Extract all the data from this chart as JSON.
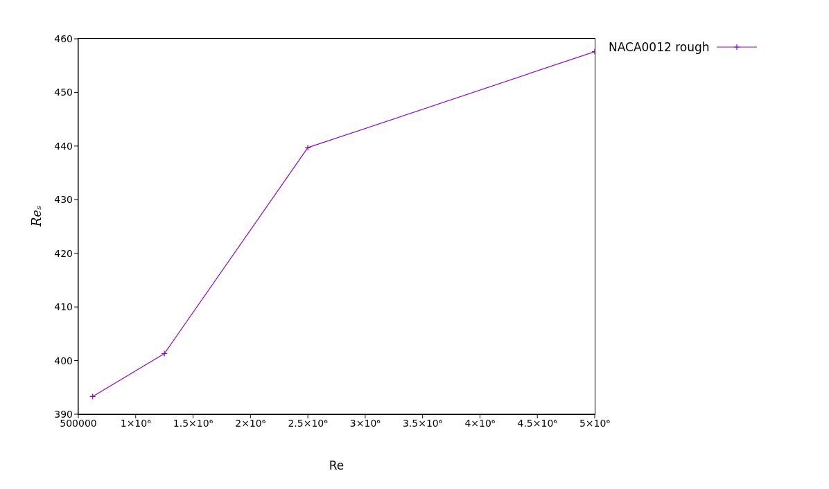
{
  "chart_data": {
    "type": "line",
    "xlabel": "Re",
    "ylabel": "Reₛ",
    "x": [
      625000,
      1250000,
      2500000,
      5000000
    ],
    "series": [
      {
        "name": "NACA0012 rough",
        "color": "#9400d3",
        "values": [
          393.3,
          401.3,
          439.7,
          457.6
        ]
      }
    ],
    "xlim": [
      500000,
      5000000
    ],
    "xticks": [
      500000,
      {
        "value": 1000000,
        "label": "1×10⁶"
      },
      {
        "value": 1500000,
        "label": "1.5×10⁶"
      },
      {
        "value": 2000000,
        "label": "2×10⁶"
      },
      {
        "value": 2500000,
        "label": "2.5×10⁶"
      },
      {
        "value": 3000000,
        "label": "3×10⁶"
      },
      {
        "value": 3500000,
        "label": "3.5×10⁶"
      },
      {
        "value": 4000000,
        "label": "4×10⁶"
      },
      {
        "value": 4500000,
        "label": "4.5×10⁶"
      },
      {
        "value": 5000000,
        "label": "5×10⁶"
      }
    ],
    "ylim": [
      390,
      460
    ],
    "yticks": [
      390,
      400,
      410,
      420,
      430,
      440,
      450,
      460
    ],
    "grid": false,
    "legend": "top right",
    "marker": "cross",
    "line_style": "solid"
  }
}
